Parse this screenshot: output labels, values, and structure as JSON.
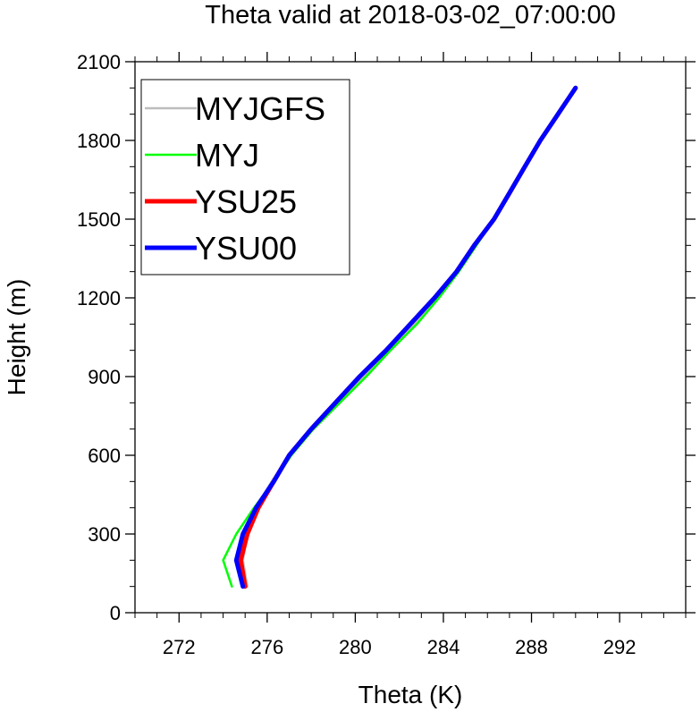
{
  "chart_data": {
    "type": "line",
    "title": "Theta valid at 2018-03-02_07:00:00",
    "xlabel": "Theta (K)",
    "ylabel": "Height (m)",
    "xlim": [
      270,
      295
    ],
    "ylim": [
      0,
      2100
    ],
    "x_ticks": [
      272,
      276,
      280,
      284,
      288,
      292
    ],
    "y_ticks": [
      0,
      300,
      600,
      900,
      1200,
      1500,
      1800,
      2100
    ],
    "legend_position": "top-left",
    "grid": false,
    "series": [
      {
        "name": "MYJGFS",
        "color": "#bdbdbd",
        "width": 2.5,
        "points": [
          [
            275.1,
            100
          ],
          [
            274.9,
            200
          ],
          [
            275.1,
            300
          ],
          [
            275.5,
            400
          ],
          [
            276.2,
            500
          ],
          [
            277.0,
            600
          ],
          [
            278.1,
            700
          ],
          [
            279.3,
            800
          ],
          [
            280.4,
            900
          ],
          [
            281.5,
            1000
          ],
          [
            282.7,
            1100
          ],
          [
            283.8,
            1200
          ],
          [
            284.7,
            1300
          ],
          [
            285.5,
            1400
          ],
          [
            286.3,
            1500
          ],
          [
            287.0,
            1600
          ],
          [
            287.7,
            1700
          ],
          [
            288.4,
            1800
          ],
          [
            289.2,
            1900
          ],
          [
            290.0,
            2000
          ]
        ]
      },
      {
        "name": "MYJ",
        "color": "#00ff00",
        "width": 2.5,
        "points": [
          [
            274.4,
            100
          ],
          [
            274.0,
            200
          ],
          [
            274.6,
            300
          ],
          [
            275.4,
            400
          ],
          [
            276.3,
            500
          ],
          [
            277.1,
            600
          ],
          [
            278.1,
            700
          ],
          [
            279.3,
            800
          ],
          [
            280.5,
            900
          ],
          [
            281.6,
            1000
          ],
          [
            282.8,
            1100
          ],
          [
            283.8,
            1200
          ],
          [
            284.7,
            1300
          ],
          [
            285.5,
            1400
          ],
          [
            286.3,
            1500
          ],
          [
            287.0,
            1600
          ],
          [
            287.7,
            1700
          ],
          [
            288.4,
            1800
          ],
          [
            289.2,
            1900
          ],
          [
            290.0,
            2000
          ]
        ]
      },
      {
        "name": "YSU25",
        "color": "#ff0000",
        "width": 5,
        "points": [
          [
            275.0,
            100
          ],
          [
            274.8,
            200
          ],
          [
            275.1,
            300
          ],
          [
            275.6,
            400
          ],
          [
            276.3,
            500
          ],
          [
            277.0,
            600
          ],
          [
            278.0,
            700
          ],
          [
            279.1,
            800
          ],
          [
            280.2,
            900
          ],
          [
            281.4,
            1000
          ],
          [
            282.5,
            1100
          ],
          [
            283.6,
            1200
          ],
          [
            284.6,
            1300
          ],
          [
            285.4,
            1400
          ],
          [
            286.3,
            1500
          ],
          [
            287.0,
            1600
          ],
          [
            287.7,
            1700
          ],
          [
            288.4,
            1800
          ],
          [
            289.2,
            1900
          ],
          [
            290.0,
            2000
          ]
        ]
      },
      {
        "name": "YSU00",
        "color": "#0000ff",
        "width": 5,
        "points": [
          [
            274.9,
            100
          ],
          [
            274.6,
            200
          ],
          [
            274.9,
            300
          ],
          [
            275.5,
            400
          ],
          [
            276.3,
            500
          ],
          [
            277.0,
            600
          ],
          [
            278.0,
            700
          ],
          [
            279.1,
            800
          ],
          [
            280.2,
            900
          ],
          [
            281.4,
            1000
          ],
          [
            282.5,
            1100
          ],
          [
            283.6,
            1200
          ],
          [
            284.6,
            1300
          ],
          [
            285.4,
            1400
          ],
          [
            286.3,
            1500
          ],
          [
            287.0,
            1600
          ],
          [
            287.7,
            1700
          ],
          [
            288.4,
            1800
          ],
          [
            289.2,
            1900
          ],
          [
            290.0,
            2000
          ]
        ]
      }
    ]
  }
}
